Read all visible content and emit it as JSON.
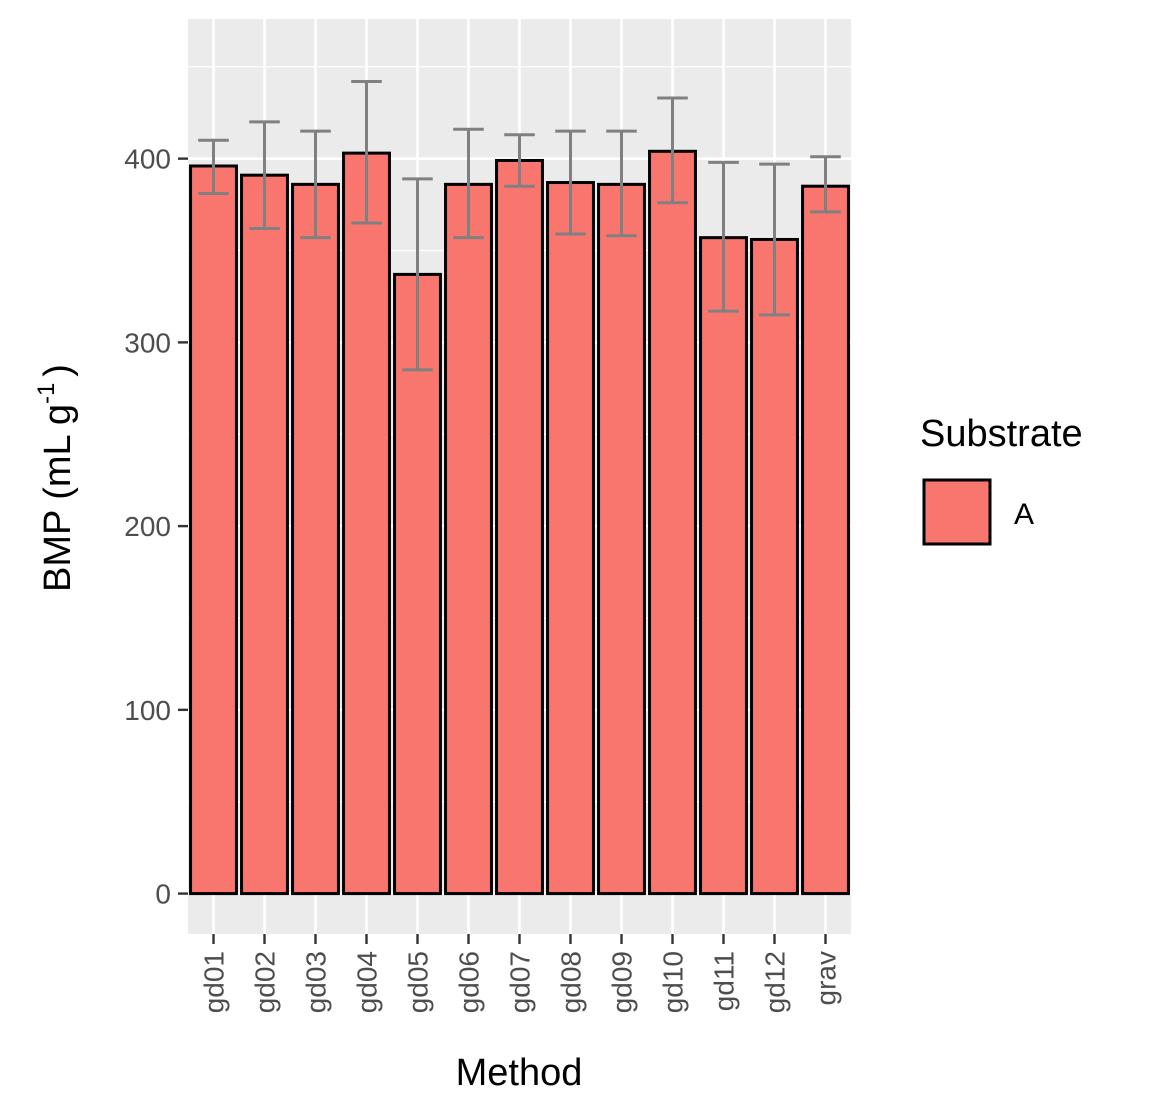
{
  "chart_data": {
    "type": "bar",
    "categories": [
      "gd01",
      "gd02",
      "gd03",
      "gd04",
      "gd05",
      "gd06",
      "gd07",
      "gd08",
      "gd09",
      "gd10",
      "gd11",
      "gd12",
      "grav"
    ],
    "series": [
      {
        "name": "A",
        "values": [
          396,
          391,
          386,
          403,
          337,
          386,
          399,
          387,
          386,
          404,
          357,
          356,
          385
        ],
        "error_low": [
          381,
          362,
          357,
          365,
          285,
          357,
          385,
          359,
          358,
          376,
          317,
          315,
          371
        ],
        "error_high": [
          410,
          420,
          415,
          442,
          389,
          416,
          413,
          415,
          415,
          433,
          398,
          397,
          401
        ]
      }
    ],
    "xlabel": "Method",
    "ylabel": "BMP (mL g",
    "ylabel_superscript": "-1",
    "ylabel_close": ")",
    "yticks": [
      0,
      100,
      200,
      300,
      400
    ],
    "ylim": [
      -22,
      476
    ],
    "grid": true,
    "legend": {
      "title": "Substrate",
      "placement": "right",
      "labels": [
        "A"
      ]
    },
    "colors": {
      "bar_fill": "#F8766D",
      "bar_stroke": "#000000",
      "error_bar": "#808080",
      "panel": "#EBEBEB",
      "grid": "#FFFFFF"
    }
  }
}
